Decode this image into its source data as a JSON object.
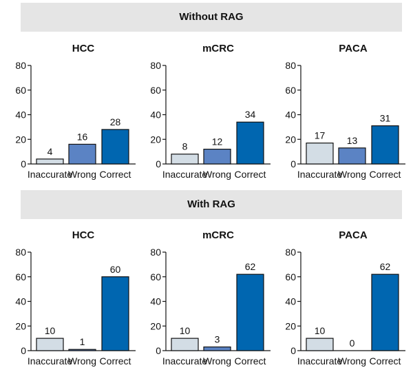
{
  "sections": [
    {
      "title": "Without RAG"
    },
    {
      "title": "With RAG"
    }
  ],
  "colors": {
    "Inaccurate": "#d3dde5",
    "Wrong": "#5b83c4",
    "Correct": "#0066b0"
  },
  "chart_data": [
    {
      "type": "bar",
      "section": "Without RAG",
      "title": "HCC",
      "categories": [
        "Inaccurate",
        "Wrong",
        "Correct"
      ],
      "values": [
        4,
        16,
        28
      ],
      "ylim": [
        0,
        80
      ],
      "yticks": [
        0,
        20,
        40,
        60,
        80
      ],
      "xlabel": "",
      "ylabel": ""
    },
    {
      "type": "bar",
      "section": "Without RAG",
      "title": "mCRC",
      "categories": [
        "Inaccurate",
        "Wrong",
        "Correct"
      ],
      "values": [
        8,
        12,
        34
      ],
      "ylim": [
        0,
        80
      ],
      "yticks": [
        0,
        20,
        40,
        60,
        80
      ],
      "xlabel": "",
      "ylabel": ""
    },
    {
      "type": "bar",
      "section": "Without RAG",
      "title": "PACA",
      "categories": [
        "Inaccurate",
        "Wrong",
        "Correct"
      ],
      "values": [
        17,
        13,
        31
      ],
      "ylim": [
        0,
        80
      ],
      "yticks": [
        0,
        20,
        40,
        60,
        80
      ],
      "xlabel": "",
      "ylabel": ""
    },
    {
      "type": "bar",
      "section": "With RAG",
      "title": "HCC",
      "categories": [
        "Inaccurate",
        "Wrong",
        "Correct"
      ],
      "values": [
        10,
        1,
        60
      ],
      "ylim": [
        0,
        80
      ],
      "yticks": [
        0,
        20,
        40,
        60,
        80
      ],
      "xlabel": "",
      "ylabel": ""
    },
    {
      "type": "bar",
      "section": "With RAG",
      "title": "mCRC",
      "categories": [
        "Inaccurate",
        "Wrong",
        "Correct"
      ],
      "values": [
        10,
        3,
        62
      ],
      "ylim": [
        0,
        80
      ],
      "yticks": [
        0,
        20,
        40,
        60,
        80
      ],
      "xlabel": "",
      "ylabel": ""
    },
    {
      "type": "bar",
      "section": "With RAG",
      "title": "PACA",
      "categories": [
        "Inaccurate",
        "Wrong",
        "Correct"
      ],
      "values": [
        10,
        0,
        62
      ],
      "ylim": [
        0,
        80
      ],
      "yticks": [
        0,
        20,
        40,
        60,
        80
      ],
      "xlabel": "",
      "ylabel": ""
    }
  ]
}
